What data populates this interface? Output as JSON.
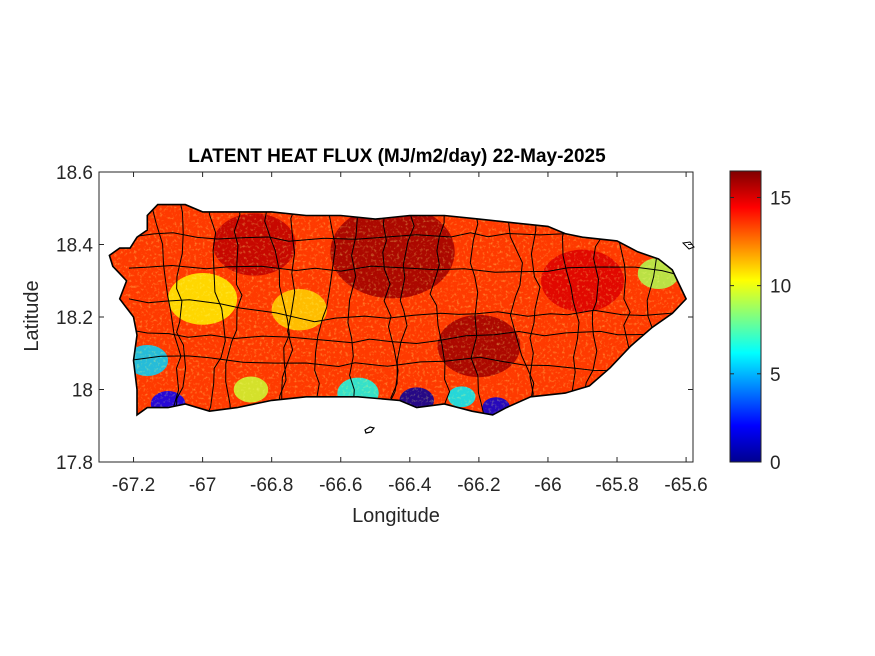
{
  "chart_data": {
    "type": "heatmap",
    "title": "LATENT HEAT FLUX (MJ/m2/day) 22-May-2025",
    "xlabel": "Longitude",
    "ylabel": "Latitude",
    "xlim": [
      -67.3,
      -65.58
    ],
    "ylim": [
      17.8,
      18.6
    ],
    "xticks": [
      -67.2,
      -67,
      -66.8,
      -66.6,
      -66.4,
      -66.2,
      -66,
      -65.8,
      -65.6
    ],
    "xtick_labels": [
      "-67.2",
      "-67",
      "-66.8",
      "-66.6",
      "-66.4",
      "-66.2",
      "-66",
      "-65.8",
      "-65.6"
    ],
    "yticks": [
      17.8,
      18,
      18.2,
      18.4,
      18.6
    ],
    "ytick_labels": [
      "17.8",
      "18",
      "18.2",
      "18.4",
      "18.6"
    ],
    "colorbar": {
      "colormap": "jet",
      "clim": [
        0,
        16.5
      ],
      "ticks": [
        0,
        5,
        10,
        15
      ],
      "tick_labels": [
        "0",
        "5",
        "10",
        "15"
      ]
    },
    "grid": false,
    "region_outline": [
      [
        -67.27,
        18.37
      ],
      [
        -67.24,
        18.39
      ],
      [
        -67.21,
        18.39
      ],
      [
        -67.19,
        18.42
      ],
      [
        -67.16,
        18.44
      ],
      [
        -67.16,
        18.48
      ],
      [
        -67.13,
        18.51
      ],
      [
        -67.05,
        18.51
      ],
      [
        -67.0,
        18.49
      ],
      [
        -66.9,
        18.49
      ],
      [
        -66.8,
        18.49
      ],
      [
        -66.7,
        18.48
      ],
      [
        -66.6,
        18.48
      ],
      [
        -66.5,
        18.47
      ],
      [
        -66.4,
        18.48
      ],
      [
        -66.3,
        18.48
      ],
      [
        -66.2,
        18.47
      ],
      [
        -66.1,
        18.46
      ],
      [
        -66.0,
        18.45
      ],
      [
        -65.95,
        18.43
      ],
      [
        -65.9,
        18.42
      ],
      [
        -65.8,
        18.41
      ],
      [
        -65.74,
        18.38
      ],
      [
        -65.68,
        18.36
      ],
      [
        -65.64,
        18.33
      ],
      [
        -65.6,
        18.25
      ],
      [
        -65.64,
        18.21
      ],
      [
        -65.7,
        18.17
      ],
      [
        -65.76,
        18.12
      ],
      [
        -65.82,
        18.06
      ],
      [
        -65.88,
        18.01
      ],
      [
        -65.95,
        17.99
      ],
      [
        -66.05,
        17.98
      ],
      [
        -66.12,
        17.95
      ],
      [
        -66.16,
        17.93
      ],
      [
        -66.22,
        17.94
      ],
      [
        -66.3,
        17.96
      ],
      [
        -66.38,
        17.95
      ],
      [
        -66.43,
        17.97
      ],
      [
        -66.55,
        17.98
      ],
      [
        -66.7,
        17.98
      ],
      [
        -66.8,
        17.97
      ],
      [
        -66.9,
        17.95
      ],
      [
        -66.98,
        17.94
      ],
      [
        -67.05,
        17.96
      ],
      [
        -67.1,
        17.95
      ],
      [
        -67.16,
        17.95
      ],
      [
        -67.19,
        17.93
      ],
      [
        -67.19,
        18.0
      ],
      [
        -67.2,
        18.08
      ],
      [
        -67.19,
        18.15
      ],
      [
        -67.2,
        18.2
      ],
      [
        -67.24,
        18.25
      ],
      [
        -67.22,
        18.3
      ],
      [
        -67.26,
        18.34
      ]
    ],
    "field_regions": [
      {
        "lon": -66.45,
        "lat": 18.38,
        "value": 16.0,
        "radius": 0.18
      },
      {
        "lon": -66.85,
        "lat": 18.4,
        "value": 15.5,
        "radius": 0.12
      },
      {
        "lon": -66.2,
        "lat": 18.12,
        "value": 16.0,
        "radius": 0.12
      },
      {
        "lon": -65.9,
        "lat": 18.3,
        "value": 15.0,
        "radius": 0.12
      },
      {
        "lon": -67.0,
        "lat": 18.25,
        "value": 10.5,
        "radius": 0.1
      },
      {
        "lon": -66.72,
        "lat": 18.22,
        "value": 11.0,
        "radius": 0.08
      },
      {
        "lon": -65.68,
        "lat": 18.32,
        "value": 9.0,
        "radius": 0.06
      },
      {
        "lon": -67.16,
        "lat": 18.08,
        "value": 5.5,
        "radius": 0.06
      },
      {
        "lon": -67.1,
        "lat": 17.96,
        "value": 2.0,
        "radius": 0.05
      },
      {
        "lon": -66.55,
        "lat": 17.99,
        "value": 6.5,
        "radius": 0.06
      },
      {
        "lon": -66.38,
        "lat": 17.97,
        "value": 0.5,
        "radius": 0.05
      },
      {
        "lon": -66.15,
        "lat": 17.95,
        "value": 1.5,
        "radius": 0.04
      },
      {
        "lon": -66.25,
        "lat": 17.98,
        "value": 6.0,
        "radius": 0.04
      },
      {
        "lon": -66.86,
        "lat": 18.0,
        "value": 9.5,
        "radius": 0.05
      }
    ]
  }
}
